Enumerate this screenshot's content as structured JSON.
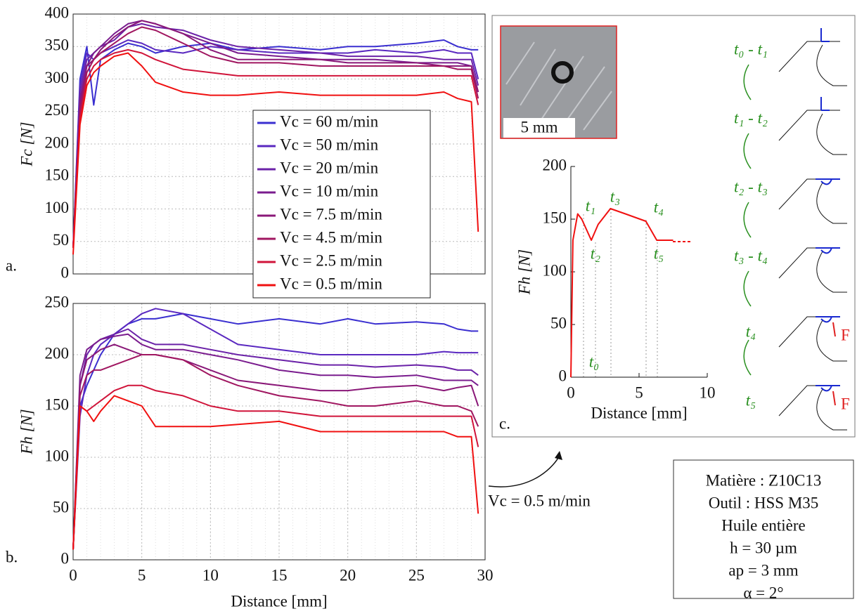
{
  "chart_data": [
    {
      "type": "line",
      "panel": "a.",
      "ylabel": "Fc [N]",
      "xlim": [
        0,
        30
      ],
      "ylim": [
        0,
        400
      ],
      "yticks": [
        0,
        50,
        100,
        150,
        200,
        250,
        300,
        350,
        400
      ],
      "grid": true,
      "legend": "center",
      "x": [
        0,
        0.5,
        1,
        1.5,
        2,
        3,
        4,
        5,
        6,
        8,
        10,
        12,
        15,
        18,
        20,
        22,
        25,
        27,
        28,
        29,
        29.5
      ],
      "series": [
        {
          "name": "Vc = 60 m/min",
          "color": "#3a2fd0",
          "values": [
            40,
            300,
            350,
            260,
            330,
            345,
            355,
            350,
            340,
            350,
            355,
            345,
            350,
            345,
            350,
            350,
            355,
            360,
            350,
            345,
            345
          ]
        },
        {
          "name": "Vc = 50 m/min",
          "color": "#5a28c0",
          "values": [
            40,
            290,
            340,
            330,
            340,
            350,
            360,
            355,
            345,
            340,
            350,
            345,
            340,
            340,
            340,
            345,
            340,
            345,
            340,
            340,
            300
          ]
        },
        {
          "name": "Vc = 20 m/min",
          "color": "#6b22a8",
          "values": [
            40,
            280,
            330,
            340,
            350,
            360,
            380,
            385,
            380,
            375,
            360,
            350,
            345,
            340,
            335,
            335,
            335,
            330,
            330,
            330,
            290
          ]
        },
        {
          "name": "Vc = 10 m/min",
          "color": "#7a1c8e",
          "values": [
            40,
            270,
            320,
            340,
            350,
            370,
            385,
            390,
            385,
            370,
            355,
            340,
            335,
            330,
            330,
            330,
            325,
            325,
            325,
            320,
            280
          ]
        },
        {
          "name": "Vc = 7.5 m/min",
          "color": "#8a1878",
          "values": [
            40,
            260,
            320,
            330,
            345,
            365,
            380,
            390,
            385,
            370,
            345,
            330,
            330,
            330,
            325,
            325,
            325,
            320,
            320,
            320,
            280
          ]
        },
        {
          "name": "Vc = 4.5 m/min",
          "color": "#a01660",
          "values": [
            40,
            250,
            310,
            330,
            340,
            355,
            370,
            380,
            375,
            355,
            335,
            325,
            325,
            320,
            320,
            320,
            320,
            320,
            315,
            315,
            270
          ]
        },
        {
          "name": "Vc = 2.5 m/min",
          "color": "#d0143a",
          "values": [
            40,
            240,
            300,
            320,
            330,
            340,
            345,
            340,
            330,
            315,
            310,
            305,
            305,
            305,
            305,
            305,
            305,
            305,
            305,
            305,
            260
          ]
        },
        {
          "name": "Vc = 0.5 m/min",
          "color": "#f01010",
          "values": [
            30,
            230,
            290,
            310,
            320,
            335,
            340,
            320,
            295,
            280,
            275,
            275,
            280,
            275,
            275,
            275,
            275,
            280,
            270,
            265,
            65
          ]
        }
      ]
    },
    {
      "type": "line",
      "panel": "b.",
      "ylabel": "Fh [N]",
      "xlabel": "Distance [mm]",
      "xlim": [
        0,
        30
      ],
      "ylim": [
        0,
        250
      ],
      "xticks": [
        0,
        5,
        10,
        15,
        20,
        25,
        30
      ],
      "yticks": [
        0,
        50,
        100,
        150,
        200,
        250
      ],
      "grid": true,
      "x": [
        0,
        0.5,
        1,
        1.5,
        2,
        3,
        4,
        5,
        6,
        8,
        10,
        12,
        15,
        18,
        20,
        22,
        25,
        27,
        28,
        29,
        29.5
      ],
      "series": [
        {
          "color": "#3a2fd0",
          "values": [
            10,
            150,
            170,
            185,
            200,
            220,
            230,
            235,
            235,
            240,
            235,
            230,
            235,
            230,
            235,
            230,
            232,
            230,
            225,
            223,
            223
          ]
        },
        {
          "color": "#5a28c0",
          "values": [
            10,
            140,
            180,
            200,
            210,
            220,
            230,
            240,
            245,
            240,
            225,
            210,
            205,
            200,
            200,
            200,
            200,
            203,
            202,
            202,
            202
          ]
        },
        {
          "color": "#6b22a8",
          "values": [
            10,
            170,
            200,
            210,
            215,
            220,
            225,
            215,
            210,
            210,
            205,
            200,
            195,
            190,
            190,
            188,
            190,
            188,
            185,
            185,
            180
          ]
        },
        {
          "color": "#7a1c8e",
          "values": [
            10,
            180,
            205,
            210,
            215,
            218,
            220,
            210,
            205,
            205,
            200,
            195,
            185,
            180,
            180,
            178,
            180,
            175,
            175,
            175,
            170
          ]
        },
        {
          "color": "#8a1878",
          "values": [
            10,
            170,
            195,
            200,
            205,
            210,
            205,
            200,
            200,
            195,
            185,
            175,
            170,
            165,
            165,
            168,
            170,
            165,
            168,
            170,
            150
          ]
        },
        {
          "color": "#a01660",
          "values": [
            10,
            160,
            180,
            185,
            185,
            190,
            195,
            200,
            200,
            195,
            180,
            170,
            160,
            155,
            150,
            150,
            155,
            150,
            150,
            145,
            130
          ]
        },
        {
          "color": "#d0143a",
          "values": [
            10,
            150,
            145,
            150,
            155,
            165,
            170,
            170,
            165,
            160,
            150,
            145,
            145,
            140,
            140,
            140,
            140,
            140,
            140,
            140,
            110
          ]
        },
        {
          "color": "#f01010",
          "values": [
            10,
            150,
            145,
            135,
            145,
            160,
            155,
            150,
            130,
            130,
            130,
            132,
            135,
            125,
            125,
            125,
            125,
            125,
            120,
            120,
            45
          ]
        }
      ]
    },
    {
      "type": "line",
      "panel": "c.",
      "ylabel": "Fh [N]",
      "xlabel": "Distance [mm]",
      "xlim": [
        0,
        10
      ],
      "ylim": [
        0,
        200
      ],
      "xticks": [
        0,
        5,
        10
      ],
      "yticks": [
        0,
        50,
        100,
        150,
        200
      ],
      "grid": false,
      "x": [
        0,
        0.15,
        0.5,
        0.8,
        1.5,
        2,
        2.9,
        4,
        5.5,
        6.3,
        7.5
      ],
      "series": [
        {
          "color": "#f01010",
          "values": [
            0,
            130,
            155,
            150,
            130,
            145,
            160,
            155,
            148,
            130,
            130
          ]
        }
      ],
      "annotations": [
        "t₀",
        "t₁",
        "t₂",
        "t₃",
        "t₄",
        "t₅"
      ]
    }
  ],
  "inset_scale": "5 mm",
  "schematic": {
    "steps": [
      "t₀ - t₁",
      "t₁ - t₂",
      "t₂ - t₃",
      "t₃ - t₄",
      "t₄",
      "t₅"
    ],
    "force": [
      "F",
      "F"
    ]
  },
  "callout": "Vc = 0.5 m/min",
  "conditions": [
    "Matière : Z10C13",
    "Outil : HSS M35",
    "Huile entière",
    "h = 30 µm",
    "ap = 3 mm",
    "α = 2°"
  ]
}
